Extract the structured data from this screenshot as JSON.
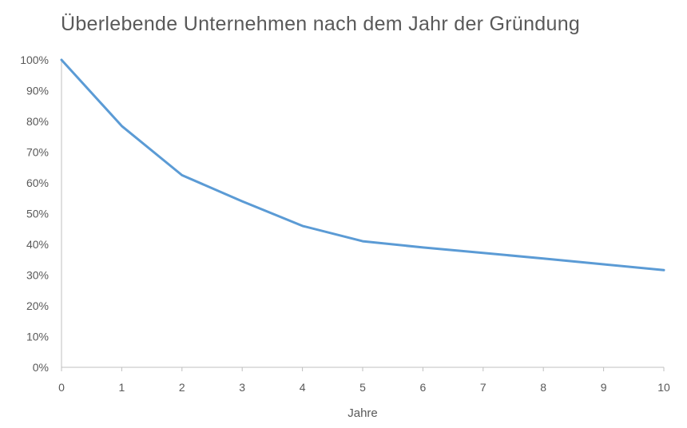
{
  "chart_data": {
    "type": "line",
    "title": "Überlebende Unternehmen nach dem Jahr der Gründung",
    "xlabel": "Jahre",
    "ylabel": "",
    "x": [
      0,
      1,
      2,
      3,
      4,
      5,
      6,
      7,
      8,
      9,
      10
    ],
    "series": [
      {
        "values": [
          100,
          78.5,
          62.5,
          54,
          46,
          41,
          39,
          37.2,
          35.4,
          33.5,
          31.6
        ]
      }
    ],
    "xlim": [
      0,
      10
    ],
    "ylim": [
      0,
      100
    ],
    "y_ticks": [
      "0%",
      "10%",
      "20%",
      "30%",
      "40%",
      "50%",
      "60%",
      "70%",
      "80%",
      "90%",
      "100%"
    ],
    "x_ticks": [
      "0",
      "1",
      "2",
      "3",
      "4",
      "5",
      "6",
      "7",
      "8",
      "9",
      "10"
    ],
    "grid": false,
    "legend": "none",
    "line_color": "#5B9BD5"
  }
}
